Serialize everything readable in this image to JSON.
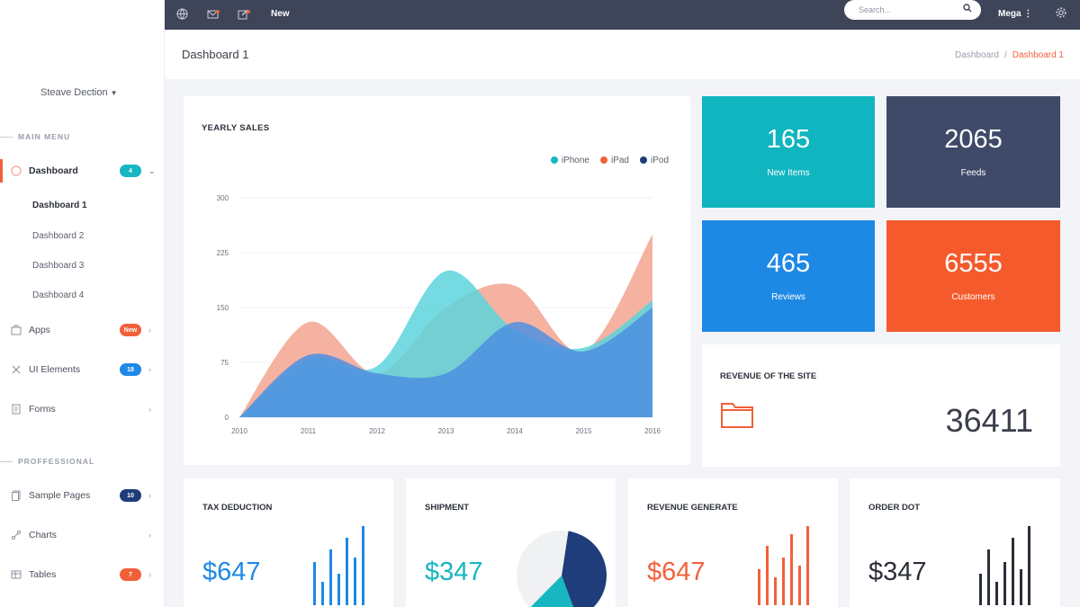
{
  "sidebar": {
    "user": "Steave Dection",
    "main_menu_label": "MAIN MENU",
    "professional_label": "PROFFESSIONAL",
    "items": [
      {
        "label": "Dashboard",
        "badge": "4",
        "badge_color": "#17b6c1",
        "icon": "dashboard-icon"
      },
      {
        "label": "Apps",
        "badge": "New",
        "badge_color": "#f2603a",
        "icon": "apps-icon"
      },
      {
        "label": "UI Elements",
        "badge": "18",
        "badge_color": "#1e88e5",
        "icon": "ui-elements-icon"
      },
      {
        "label": "Forms",
        "badge": "",
        "icon": "forms-icon"
      },
      {
        "label": "Sample Pages",
        "badge": "10",
        "badge_color": "#1f3d7a",
        "icon": "pages-icon"
      },
      {
        "label": "Charts",
        "badge": "",
        "icon": "charts-icon"
      },
      {
        "label": "Tables",
        "badge": "7",
        "badge_color": "#f2603a",
        "icon": "tables-icon"
      }
    ],
    "sub_items": [
      "Dashboard 1",
      "Dashboard 2",
      "Dashboard 3",
      "Dashboard 4"
    ]
  },
  "topbar": {
    "new_label": "New",
    "search_placeholder": "Search...",
    "mega_label": "Mega"
  },
  "header": {
    "title": "Dashboard 1",
    "breadcrumb": [
      "Dashboard",
      "Dashboard 1"
    ]
  },
  "yearly": {
    "title": "YEARLY SALES",
    "legend": [
      "iPhone",
      "iPad",
      "iPod"
    ],
    "colors": {
      "iPhone": "#17b6c1",
      "iPad": "#f2603a",
      "iPod": "#1f3d7a"
    }
  },
  "chart_data": {
    "type": "area",
    "x": [
      "2010",
      "2011",
      "2012",
      "2013",
      "2014",
      "2015",
      "2016"
    ],
    "yticks": [
      "0",
      "75",
      "150",
      "225",
      "300"
    ],
    "ylim": [
      0,
      300
    ],
    "series": [
      {
        "name": "iPad",
        "color": "#f3a58f",
        "values": [
          0,
          130,
          60,
          150,
          180,
          90,
          250
        ]
      },
      {
        "name": "iPhone",
        "color": "#5dd3dc",
        "values": [
          0,
          80,
          70,
          200,
          120,
          95,
          160
        ]
      },
      {
        "name": "iPod",
        "color": "#4d8fe0",
        "values": [
          0,
          85,
          60,
          60,
          130,
          90,
          150
        ]
      }
    ],
    "legend_position": "top-right",
    "grid": true
  },
  "stats": [
    {
      "value": "165",
      "label": "New Items",
      "color": "#11b5bf"
    },
    {
      "value": "2065",
      "label": "Feeds",
      "color": "#3e4a68"
    },
    {
      "value": "465",
      "label": "Reviews",
      "color": "#1e88e5"
    },
    {
      "value": "6555",
      "label": "Customers",
      "color": "#f55a2c"
    }
  ],
  "revenue": {
    "title": "REVENUE OF THE SITE",
    "value": "36411",
    "icon": "folder-icon"
  },
  "minis": [
    {
      "title": "TAX DEDUCTION",
      "value": "$647",
      "color": "#1e88e5",
      "bars": [
        0.55,
        0.3,
        0.7,
        0.4,
        0.85,
        0.6,
        1.0
      ]
    },
    {
      "title": "SHIPMENT",
      "value": "$347",
      "color": "#17b6c1",
      "pie": [
        {
          "color": "#1f3d7a",
          "frac": 0.42
        },
        {
          "color": "#17b6c1",
          "frac": 0.18
        },
        {
          "color": "#f0f1f3",
          "frac": 0.4
        }
      ]
    },
    {
      "title": "REVENUE GENERATE",
      "value": "$647",
      "color": "#f2603a",
      "bars": [
        0.45,
        0.75,
        0.35,
        0.6,
        0.9,
        0.5,
        1.0
      ]
    },
    {
      "title": "ORDER DOT",
      "value": "$347",
      "color": "#2b2f38",
      "bars": [
        0.4,
        0.7,
        0.3,
        0.55,
        0.85,
        0.45,
        1.0
      ]
    }
  ]
}
